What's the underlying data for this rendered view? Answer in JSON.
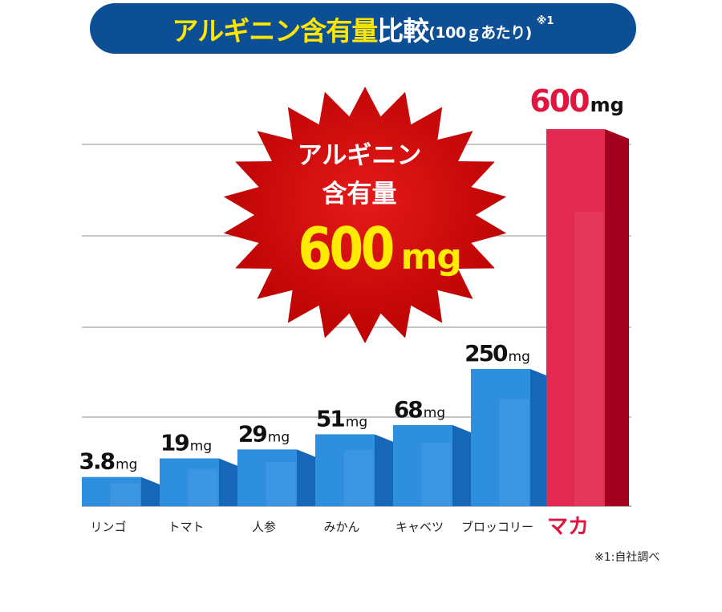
{
  "header": {
    "title_main": "アルギニン含有量",
    "title_comp": "比較",
    "title_paren": "(100ｇあたり)",
    "title_note": "※1"
  },
  "burst": {
    "line1": "アルギニン",
    "line2": "含有量",
    "value": "600",
    "unit": "mg"
  },
  "footnote": "※1:自社調べ",
  "colors": {
    "bar_blue": "#2f8fdf",
    "bar_red": "#e2294f",
    "highlight_label": "#e0163e",
    "title_bg": "#0d4f94",
    "title_yellow": "#ffe600",
    "burst_red": "#cc0000"
  },
  "chart_data": {
    "type": "bar",
    "categories": [
      "リンゴ",
      "トマト",
      "人参",
      "みかん",
      "キャベツ",
      "ブロッコリー",
      "マカ"
    ],
    "values": [
      3.8,
      19,
      29,
      51,
      68,
      250,
      600
    ],
    "value_labels": [
      "3.8",
      "19",
      "29",
      "51",
      "68",
      "250",
      "600"
    ],
    "unit": "mg",
    "highlight_index": 6,
    "scale": "non-linear (illustrative)",
    "grid": true
  }
}
